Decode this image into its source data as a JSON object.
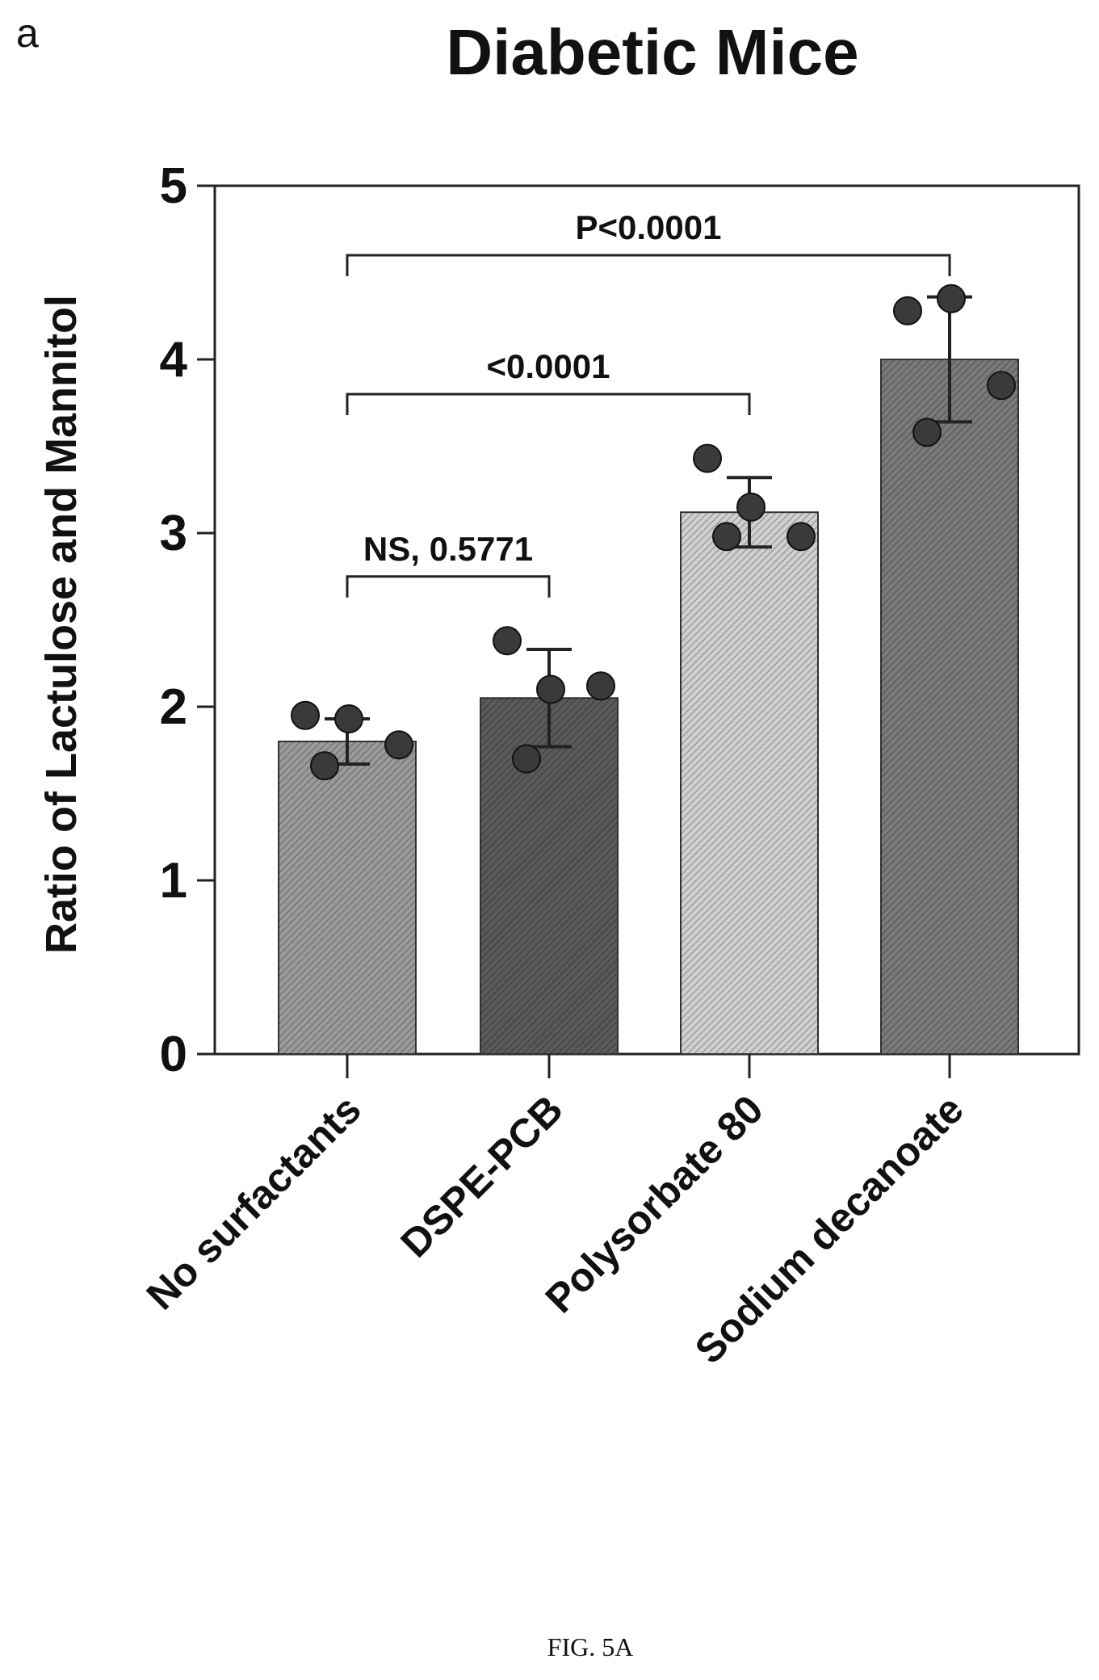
{
  "panel_letter": "a",
  "caption": "FIG. 5A",
  "chart_data": {
    "type": "bar",
    "title": "Diabetic Mice",
    "xlabel": "",
    "ylabel": "Ratio of Lactulose and Mannitol",
    "ylim": [
      0,
      5
    ],
    "yticks": [
      "0",
      "1",
      "2",
      "3",
      "4",
      "5"
    ],
    "categories": [
      "No surfactants",
      "DSPE-PCB",
      "Polysorbate 80",
      "Sodium decanoate"
    ],
    "values": [
      1.8,
      2.05,
      3.12,
      4.0
    ],
    "error": [
      0.13,
      0.28,
      0.2,
      0.36
    ],
    "points": [
      [
        1.95,
        1.93,
        1.78,
        1.66
      ],
      [
        2.38,
        2.1,
        2.12,
        1.7
      ],
      [
        3.43,
        3.15,
        2.98,
        2.98
      ],
      [
        4.28,
        4.35,
        3.85,
        3.58
      ]
    ],
    "bar_colors": [
      "#9a9a9a",
      "#5a5a5a",
      "#cfcfcf",
      "#7a7a7a"
    ],
    "point_color": "#3a3a3a",
    "grid": false,
    "annotations": [
      {
        "text": "NS, 0.5771",
        "from": 0,
        "to": 1,
        "y": 2.75
      },
      {
        "text": "<0.0001",
        "from": 0,
        "to": 2,
        "y": 3.8
      },
      {
        "text": "P<0.0001",
        "from": 0,
        "to": 3,
        "y": 4.6
      }
    ]
  }
}
